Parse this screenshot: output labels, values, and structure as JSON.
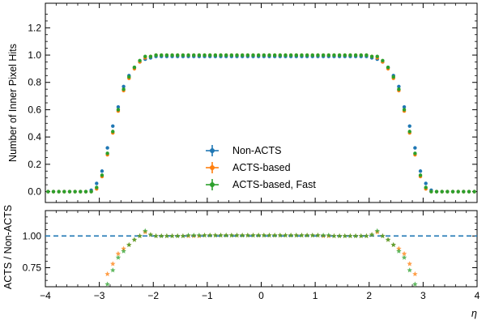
{
  "chart_data": [
    {
      "type": "scatter",
      "panel": "main",
      "ylabel": "Number of Inner Pixel Hits",
      "xlim": [
        -4,
        4
      ],
      "ylim": [
        -0.08,
        1.38
      ],
      "yticks": [
        0.0,
        0.2,
        0.4,
        0.6,
        0.8,
        1.0,
        1.2
      ],
      "ytick_labels": [
        "0.0",
        "0.2",
        "0.4",
        "0.6",
        "0.8",
        "1.0",
        "1.2"
      ],
      "legend_position": "lower-center",
      "colors": [
        "#1f77b4",
        "#ff7f0e",
        "#2ca02c"
      ],
      "x": [
        -3.95,
        -3.85,
        -3.75,
        -3.65,
        -3.55,
        -3.45,
        -3.35,
        -3.25,
        -3.15,
        -3.05,
        -2.95,
        -2.85,
        -2.75,
        -2.65,
        -2.55,
        -2.45,
        -2.35,
        -2.25,
        -2.15,
        -2.05,
        -1.95,
        -1.85,
        -1.75,
        -1.65,
        -1.55,
        -1.45,
        -1.35,
        -1.25,
        -1.15,
        -1.05,
        -0.95,
        -0.85,
        -0.75,
        -0.65,
        -0.55,
        -0.45,
        -0.35,
        -0.25,
        -0.15,
        -0.05,
        0.05,
        0.15,
        0.25,
        0.35,
        0.45,
        0.55,
        0.65,
        0.75,
        0.85,
        0.95,
        1.05,
        1.15,
        1.25,
        1.35,
        1.45,
        1.55,
        1.65,
        1.75,
        1.85,
        1.95,
        2.05,
        2.15,
        2.25,
        2.35,
        2.45,
        2.55,
        2.65,
        2.75,
        2.85,
        2.95,
        3.05,
        3.15,
        3.25,
        3.35,
        3.45,
        3.55,
        3.65,
        3.75,
        3.85,
        3.95
      ],
      "series": [
        {
          "name": "Non-ACTS",
          "values": [
            0.0,
            0.0,
            0.0,
            0.0,
            0.0,
            0.0,
            0.0,
            0.0,
            0.01,
            0.06,
            0.15,
            0.32,
            0.48,
            0.62,
            0.77,
            0.85,
            0.91,
            0.95,
            0.97,
            0.98,
            0.99,
            0.99,
            0.99,
            0.99,
            0.99,
            0.99,
            0.99,
            0.99,
            0.99,
            0.99,
            0.99,
            0.99,
            0.99,
            0.99,
            0.99,
            0.99,
            0.99,
            0.99,
            0.99,
            0.99,
            0.99,
            0.99,
            0.99,
            0.99,
            0.99,
            0.99,
            0.99,
            0.99,
            0.99,
            0.99,
            0.99,
            0.99,
            0.99,
            0.99,
            0.99,
            0.99,
            0.99,
            0.99,
            0.99,
            0.99,
            0.98,
            0.97,
            0.95,
            0.91,
            0.85,
            0.77,
            0.62,
            0.48,
            0.32,
            0.15,
            0.06,
            0.01,
            0.0,
            0.0,
            0.0,
            0.0,
            0.0,
            0.0,
            0.0,
            0.0
          ]
        },
        {
          "name": "ACTS-based",
          "values": [
            0.0,
            0.0,
            0.0,
            0.0,
            0.0,
            0.0,
            0.0,
            0.0,
            0.0,
            0.02,
            0.11,
            0.27,
            0.43,
            0.59,
            0.74,
            0.83,
            0.9,
            0.95,
            0.98,
            0.99,
            1.0,
            1.0,
            1.0,
            1.0,
            1.0,
            1.0,
            1.0,
            1.0,
            1.0,
            1.0,
            1.0,
            1.0,
            1.0,
            1.0,
            1.0,
            1.0,
            1.0,
            1.0,
            1.0,
            1.0,
            1.0,
            1.0,
            1.0,
            1.0,
            1.0,
            1.0,
            1.0,
            1.0,
            1.0,
            1.0,
            1.0,
            1.0,
            1.0,
            1.0,
            1.0,
            1.0,
            1.0,
            1.0,
            1.0,
            1.0,
            0.99,
            0.98,
            0.95,
            0.9,
            0.83,
            0.74,
            0.59,
            0.43,
            0.27,
            0.11,
            0.02,
            0.0,
            0.0,
            0.0,
            0.0,
            0.0,
            0.0,
            0.0,
            0.0,
            0.0
          ]
        },
        {
          "name": "ACTS-based, Fast",
          "values": [
            0.0,
            0.0,
            0.0,
            0.0,
            0.0,
            0.0,
            0.0,
            0.0,
            0.0,
            0.03,
            0.12,
            0.28,
            0.44,
            0.6,
            0.75,
            0.84,
            0.91,
            0.96,
            0.99,
            0.99,
            1.0,
            1.0,
            1.0,
            1.0,
            1.0,
            1.0,
            1.0,
            1.0,
            1.0,
            1.0,
            1.0,
            1.0,
            1.0,
            1.0,
            1.0,
            1.0,
            1.0,
            1.0,
            1.0,
            1.0,
            1.0,
            1.0,
            1.0,
            1.0,
            1.0,
            1.0,
            1.0,
            1.0,
            1.0,
            1.0,
            1.0,
            1.0,
            1.0,
            1.0,
            1.0,
            1.0,
            1.0,
            1.0,
            1.0,
            1.0,
            0.99,
            0.99,
            0.96,
            0.91,
            0.84,
            0.75,
            0.6,
            0.44,
            0.28,
            0.12,
            0.03,
            0.0,
            0.0,
            0.0,
            0.0,
            0.0,
            0.0,
            0.0,
            0.0,
            0.0
          ]
        }
      ]
    },
    {
      "type": "scatter",
      "panel": "ratio",
      "xlabel": "η",
      "ylabel": "ACTS / Non-ACTS",
      "xlim": [
        -4,
        4
      ],
      "ylim": [
        0.6,
        1.2
      ],
      "yticks": [
        0.75,
        1.0
      ],
      "ytick_labels": [
        "0.75",
        "1.00"
      ],
      "xticks": [
        -4,
        -3,
        -2,
        -1,
        0,
        1,
        2,
        3,
        4
      ],
      "xtick_labels": [
        "−4",
        "−3",
        "−2",
        "−1",
        "0",
        "1",
        "2",
        "3",
        "4"
      ],
      "reference_line": 1.0,
      "reference_color": "#1f77b4",
      "colors": [
        "#ff7f0e",
        "#2ca02c"
      ],
      "x": [
        -2.85,
        -2.75,
        -2.65,
        -2.55,
        -2.45,
        -2.35,
        -2.25,
        -2.15,
        -2.05,
        -1.95,
        -1.85,
        -1.75,
        -1.65,
        -1.55,
        -1.45,
        -1.35,
        -1.25,
        -1.15,
        -1.05,
        -0.95,
        -0.85,
        -0.75,
        -0.65,
        -0.55,
        -0.45,
        -0.35,
        -0.25,
        -0.15,
        -0.05,
        0.05,
        0.15,
        0.25,
        0.35,
        0.45,
        0.55,
        0.65,
        0.75,
        0.85,
        0.95,
        1.05,
        1.15,
        1.25,
        1.35,
        1.45,
        1.55,
        1.65,
        1.75,
        1.85,
        1.95,
        2.05,
        2.15,
        2.25,
        2.35,
        2.45,
        2.55,
        2.65,
        2.75,
        2.85
      ],
      "series": [
        {
          "name": "ACTS-based",
          "values": [
            0.7,
            0.78,
            0.86,
            0.9,
            0.93,
            0.97,
            1.0,
            1.03,
            1.01,
            1.0,
            1.0,
            1.0,
            1.0,
            1.0,
            1.0,
            1.0,
            1.0,
            1.0,
            1.005,
            1.005,
            1.005,
            1.005,
            1.005,
            1.005,
            1.005,
            1.005,
            1.005,
            1.005,
            1.005,
            1.005,
            1.005,
            1.005,
            1.005,
            1.005,
            1.005,
            1.005,
            1.005,
            1.005,
            1.005,
            1.005,
            1.0,
            1.0,
            1.0,
            1.0,
            1.0,
            1.0,
            1.0,
            1.0,
            1.0,
            1.01,
            1.03,
            1.0,
            0.97,
            0.93,
            0.9,
            0.86,
            0.78,
            0.7
          ]
        },
        {
          "name": "ACTS-based, Fast",
          "values": [
            0.62,
            0.73,
            0.83,
            0.88,
            0.93,
            0.97,
            1.0,
            1.04,
            1.01,
            1.0,
            1.0,
            1.0,
            1.0,
            1.0,
            1.0,
            1.005,
            1.005,
            1.005,
            1.005,
            1.005,
            1.005,
            1.005,
            1.005,
            1.005,
            1.005,
            1.005,
            1.005,
            1.005,
            1.005,
            1.005,
            1.005,
            1.005,
            1.005,
            1.005,
            1.005,
            1.005,
            1.005,
            1.005,
            1.005,
            1.005,
            1.005,
            1.005,
            1.0,
            1.0,
            1.0,
            1.0,
            1.0,
            1.0,
            1.0,
            1.01,
            1.04,
            1.0,
            0.97,
            0.93,
            0.88,
            0.83,
            0.73,
            0.62
          ]
        }
      ]
    }
  ]
}
